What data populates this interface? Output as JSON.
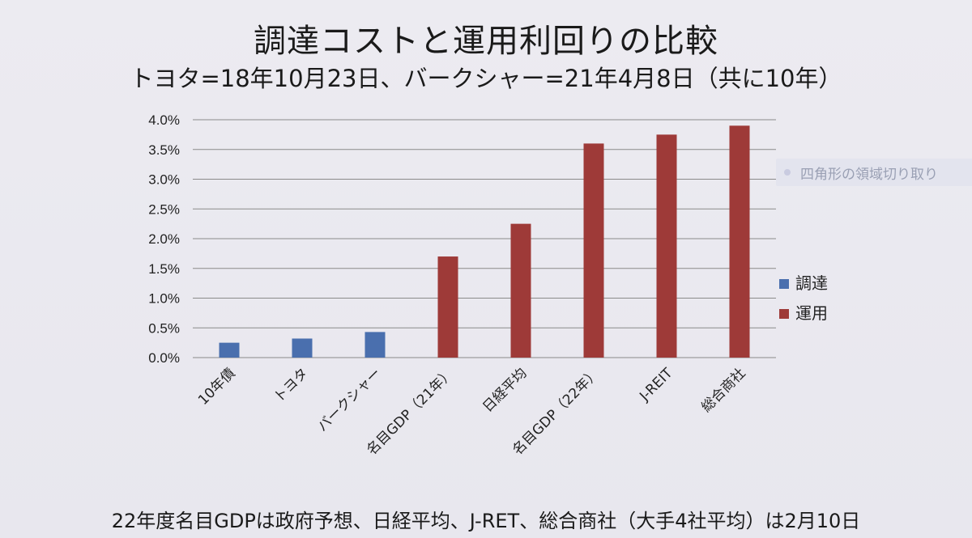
{
  "title": "調達コストと運用利回りの比較",
  "subtitle": "トヨタ=18年10月23日、バークシャー=21年4月8日（共に10年）",
  "footnote": "22年度名目GDPは政府予想、日経平均、J-RET、総合商社（大手4社平均）は2月10日",
  "tooltip": {
    "label": "四角形の領域切り取り"
  },
  "chart_data": {
    "type": "bar",
    "categories": [
      "10年債",
      "トヨタ",
      "バークシャー",
      "名目GDP（21年）",
      "日経平均",
      "名目GDP（22年）",
      "J-REIT",
      "総合商社"
    ],
    "series": [
      {
        "name": "調達",
        "color": "#4a6fae",
        "values": [
          0.25,
          0.32,
          0.43,
          null,
          null,
          null,
          null,
          null
        ]
      },
      {
        "name": "運用",
        "color": "#9e3a38",
        "values": [
          null,
          null,
          null,
          1.7,
          2.25,
          3.6,
          3.75,
          3.9
        ]
      }
    ],
    "ylim": [
      0,
      4.0
    ],
    "yticks": [
      "0.0%",
      "0.5%",
      "1.0%",
      "1.5%",
      "2.0%",
      "2.5%",
      "3.0%",
      "3.5%",
      "4.0%"
    ],
    "ytick_values": [
      0,
      0.5,
      1.0,
      1.5,
      2.0,
      2.5,
      3.0,
      3.5,
      4.0
    ],
    "grid": true,
    "legend": "right"
  }
}
